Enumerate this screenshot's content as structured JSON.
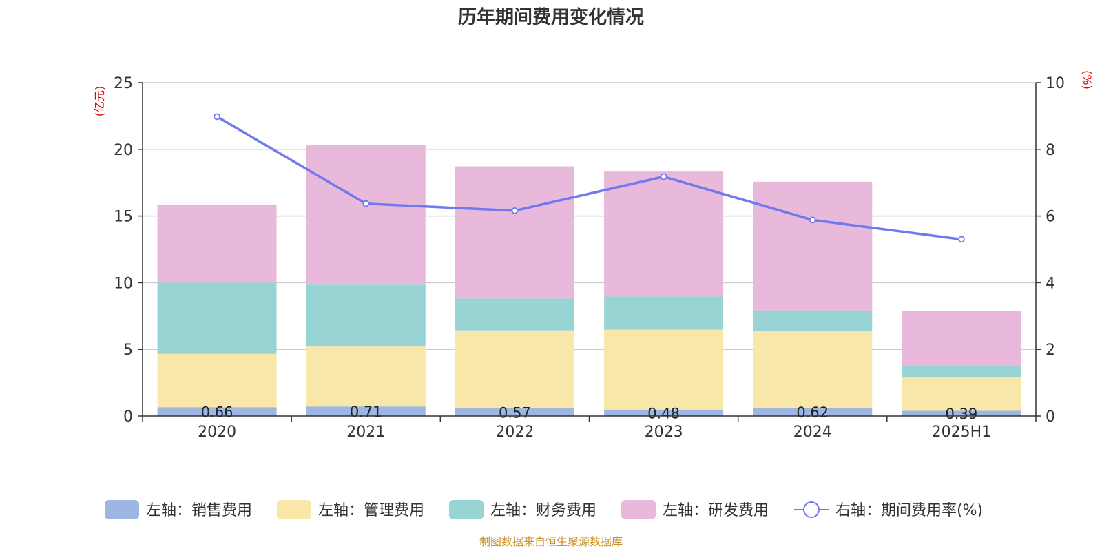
{
  "chart_data": {
    "type": "bar",
    "title": "历年期间费用变化情况",
    "categories": [
      "2020",
      "2021",
      "2022",
      "2023",
      "2024",
      "2025H1"
    ],
    "left_axis": {
      "unit": "(亿元)",
      "ylim": [
        0,
        25
      ],
      "ticks": [
        "0",
        "5",
        "10",
        "15",
        "20",
        "25"
      ]
    },
    "right_axis": {
      "unit": "(%)",
      "ylim": [
        0,
        10
      ],
      "ticks": [
        "0",
        "2",
        "4",
        "6",
        "8",
        "10"
      ]
    },
    "grid": true,
    "legend_position": "bottom",
    "series": [
      {
        "name": "左轴：销售费用",
        "type": "bar",
        "stack": true,
        "color": "#9db6e2",
        "values": [
          0.66,
          0.71,
          0.57,
          0.48,
          0.62,
          0.39
        ],
        "labels": [
          "0.66",
          "0.71",
          "0.57",
          "0.48",
          "0.62",
          "0.39"
        ]
      },
      {
        "name": "左轴：管理费用",
        "type": "bar",
        "stack": true,
        "color": "#f8e7a8",
        "values": [
          4.0,
          4.5,
          5.85,
          6.0,
          5.75,
          2.5
        ]
      },
      {
        "name": "左轴：财务费用",
        "type": "bar",
        "stack": true,
        "color": "#98d4d4",
        "values": [
          5.35,
          4.65,
          2.4,
          2.5,
          1.55,
          0.85
        ]
      },
      {
        "name": "左轴：研发费用",
        "type": "bar",
        "stack": true,
        "color": "#e8b9da",
        "values": [
          5.85,
          10.45,
          9.9,
          9.35,
          9.65,
          4.15
        ]
      },
      {
        "name": "右轴：期间费用率(%)",
        "type": "line",
        "axis": "right",
        "color": "#7179f0",
        "values": [
          8.98,
          6.37,
          6.16,
          7.18,
          5.88,
          5.3
        ]
      }
    ]
  },
  "footer": {
    "source": "制图数据来自恒生聚源数据库"
  }
}
